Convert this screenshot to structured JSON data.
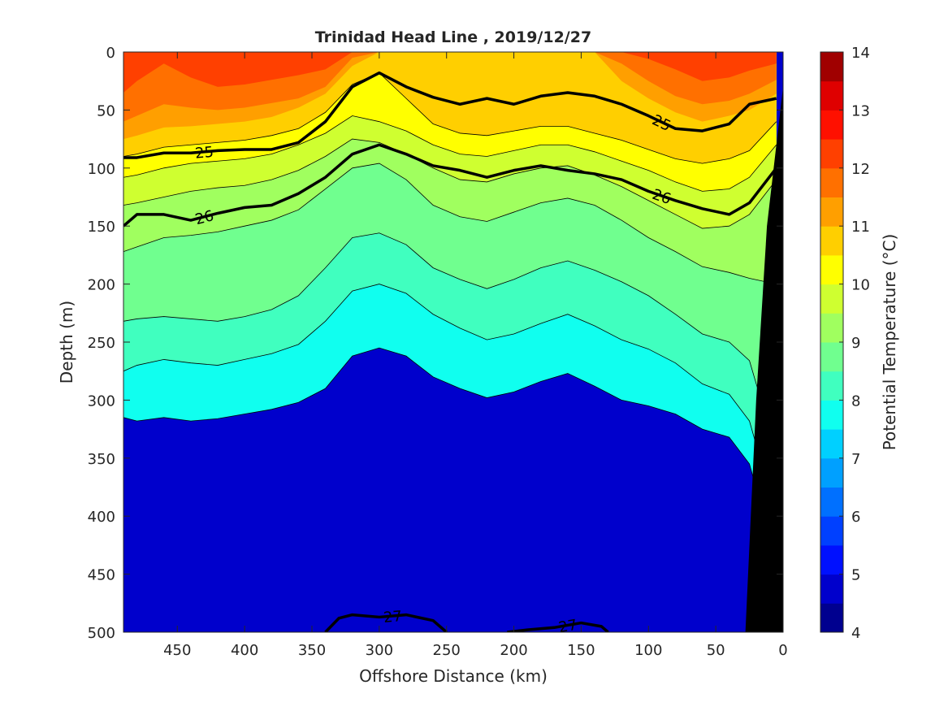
{
  "chart_data": {
    "type": "heatmap",
    "subtype": "filled-contour-section",
    "title": "Trinidad Head Line , 2019/12/27",
    "xlabel": "Offshore Distance (km)",
    "ylabel": "Depth (m)",
    "colorbar_label": "Potential Temperature (°C)",
    "x_axis_reversed": true,
    "y_axis_reversed": true,
    "xlim": [
      490,
      0
    ],
    "ylim": [
      0,
      500
    ],
    "x_ticks": [
      450,
      400,
      350,
      300,
      250,
      200,
      150,
      100,
      50,
      0
    ],
    "y_ticks": [
      0,
      50,
      100,
      150,
      200,
      250,
      300,
      350,
      400,
      450,
      500
    ],
    "colorbar_ticks": [
      4,
      5,
      6,
      7,
      8,
      9,
      10,
      11,
      12,
      13,
      14
    ],
    "colorbar_range": [
      4,
      14
    ],
    "level_step": 0.5,
    "colormap": [
      "#00008f",
      "#0000cc",
      "#0010ff",
      "#0040ff",
      "#0070ff",
      "#00a0ff",
      "#00d0ff",
      "#10ffef",
      "#40ffbf",
      "#70ff8f",
      "#a0ff5f",
      "#cfff30",
      "#ffff00",
      "#ffcf00",
      "#ff9f00",
      "#ff7000",
      "#ff4000",
      "#ff1000",
      "#df0000",
      "#a00000"
    ],
    "station_x": [
      490,
      480,
      460,
      440,
      420,
      400,
      380,
      360,
      340,
      320,
      300,
      280,
      260,
      240,
      220,
      200,
      180,
      160,
      140,
      120,
      100,
      80,
      60,
      40,
      25,
      5
    ],
    "isotherm_depths": {
      "levels": [
        7.5,
        8,
        8.5,
        9,
        9.5,
        10,
        10.5,
        11,
        11.5,
        12
      ],
      "depths": [
        [
          315,
          318,
          315,
          318,
          316,
          312,
          308,
          302,
          290,
          262,
          255,
          262,
          280,
          290,
          298,
          293,
          284,
          277,
          288,
          300,
          305,
          312,
          325,
          332,
          355,
          440
        ],
        [
          275,
          270,
          265,
          268,
          270,
          265,
          260,
          252,
          232,
          206,
          200,
          208,
          226,
          238,
          248,
          243,
          234,
          226,
          236,
          248,
          256,
          268,
          286,
          295,
          318,
          400
        ],
        [
          232,
          230,
          228,
          230,
          232,
          228,
          222,
          210,
          186,
          160,
          156,
          166,
          186,
          196,
          204,
          196,
          186,
          180,
          188,
          198,
          210,
          226,
          243,
          250,
          266,
          345
        ],
        [
          172,
          168,
          160,
          158,
          155,
          150,
          145,
          136,
          118,
          100,
          96,
          110,
          132,
          142,
          146,
          138,
          130,
          126,
          132,
          145,
          160,
          172,
          185,
          190,
          195,
          200
        ],
        [
          132,
          130,
          125,
          120,
          117,
          115,
          110,
          102,
          90,
          75,
          78,
          88,
          100,
          110,
          112,
          105,
          100,
          98,
          106,
          116,
          128,
          140,
          152,
          150,
          140,
          110
        ],
        [
          108,
          106,
          100,
          96,
          94,
          92,
          88,
          80,
          70,
          55,
          60,
          68,
          80,
          88,
          90,
          85,
          80,
          80,
          86,
          94,
          102,
          112,
          120,
          118,
          108,
          80
        ],
        [
          90,
          88,
          82,
          80,
          78,
          76,
          72,
          66,
          52,
          28,
          18,
          40,
          62,
          70,
          72,
          68,
          64,
          64,
          70,
          76,
          84,
          92,
          96,
          92,
          85,
          60
        ],
        [
          75,
          72,
          65,
          64,
          62,
          60,
          56,
          48,
          36,
          12,
          0,
          0,
          0,
          0,
          0,
          0,
          0,
          0,
          0,
          25,
          40,
          52,
          60,
          55,
          50,
          36
        ],
        [
          60,
          55,
          45,
          48,
          50,
          48,
          44,
          40,
          30,
          5,
          0,
          0,
          0,
          0,
          0,
          0,
          0,
          0,
          0,
          10,
          25,
          38,
          45,
          42,
          36,
          24
        ],
        [
          35,
          25,
          10,
          22,
          30,
          28,
          24,
          20,
          15,
          0,
          0,
          0,
          0,
          0,
          0,
          0,
          0,
          0,
          0,
          0,
          6,
          15,
          25,
          22,
          16,
          10
        ]
      ]
    },
    "density_contours": [
      {
        "label": "25",
        "x": [
          490,
          480,
          460,
          440,
          420,
          400,
          380,
          360,
          340,
          320,
          300,
          280,
          260,
          240,
          220,
          200,
          180,
          160,
          140,
          120,
          100,
          80,
          60,
          40,
          25,
          5
        ],
        "y": [
          91,
          91,
          87,
          87,
          85,
          84,
          84,
          78,
          60,
          30,
          18,
          30,
          39,
          45,
          40,
          45,
          38,
          35,
          38,
          45,
          55,
          66,
          68,
          62,
          45,
          40
        ]
      },
      {
        "label": "26",
        "x": [
          490,
          480,
          460,
          440,
          420,
          400,
          380,
          360,
          340,
          320,
          300,
          280,
          260,
          240,
          220,
          200,
          180,
          160,
          140,
          120,
          100,
          80,
          60,
          40,
          25,
          5
        ],
        "y": [
          150,
          140,
          140,
          145,
          139,
          134,
          132,
          122,
          108,
          88,
          80,
          88,
          98,
          102,
          108,
          102,
          98,
          102,
          105,
          110,
          120,
          128,
          135,
          140,
          130,
          100
        ]
      },
      {
        "label": "27",
        "x": [
          340,
          330,
          320,
          300,
          280,
          260,
          250
        ],
        "y": [
          500,
          488,
          485,
          487,
          485,
          490,
          500
        ]
      },
      {
        "label": "27",
        "x": [
          205,
          190,
          170,
          150,
          135,
          130
        ],
        "y": [
          500,
          498,
          496,
          492,
          495,
          500
        ]
      }
    ],
    "bathymetry_surface": [
      [
        28,
        500
      ],
      [
        20,
        300
      ],
      [
        12,
        150
      ],
      [
        0,
        30
      ],
      [
        0,
        500
      ]
    ]
  }
}
